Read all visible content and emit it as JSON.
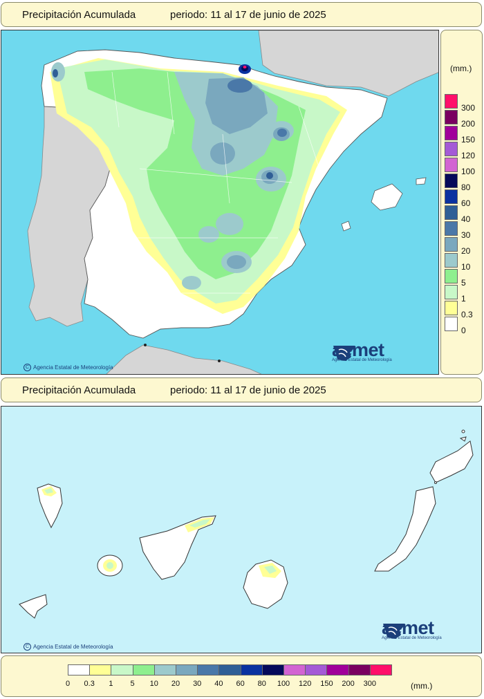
{
  "top_title": {
    "left": "Precipitación Acumulada",
    "right": "periodo: 11 al 17 de junio de 2025"
  },
  "mid_title": {
    "left": "Precipitación Acumulada",
    "right": "periodo: 11 al 17 de junio de 2025"
  },
  "credit": "Agencia Estatal de Meteorología",
  "credit_symbol": "C",
  "logo": {
    "name": "aemet",
    "subtitle": "Agencia Estatal de Meteorología",
    "icon": "aemet-logo-icon"
  },
  "legend": {
    "unit": "(mm.)",
    "side_classes": [
      {
        "label": "300",
        "color": "#ff0f6a"
      },
      {
        "label": "200",
        "color": "#7a0060"
      },
      {
        "label": "150",
        "color": "#a0009a"
      },
      {
        "label": "120",
        "color": "#a45ad6"
      },
      {
        "label": "100",
        "color": "#d264d2"
      },
      {
        "label": "80",
        "color": "#050a5a"
      },
      {
        "label": "60",
        "color": "#0a32a0"
      },
      {
        "label": "40",
        "color": "#2f5f96"
      },
      {
        "label": "30",
        "color": "#4a78a8"
      },
      {
        "label": "20",
        "color": "#7aa8be"
      },
      {
        "label": "10",
        "color": "#9ccacc"
      },
      {
        "label": "5",
        "color": "#8eef8e"
      },
      {
        "label": "1",
        "color": "#c8f8c8"
      },
      {
        "label": "0.3",
        "color": "#ffff96"
      },
      {
        "label": "0",
        "color": "#ffffff"
      }
    ],
    "bottom_swatches": [
      "#ffffff",
      "#ffff96",
      "#c8f8c8",
      "#8eef8e",
      "#9ccacc",
      "#7aa8be",
      "#4a78a8",
      "#2f5f96",
      "#0a32a0",
      "#050a5a",
      "#d264d2",
      "#a45ad6",
      "#a0009a",
      "#7a0060",
      "#ff0f6a"
    ],
    "bottom_labels": [
      "0",
      "0.3",
      "1",
      "5",
      "10",
      "20",
      "30",
      "40",
      "60",
      "80",
      "100",
      "120",
      "150",
      "200",
      "300"
    ]
  },
  "colors": {
    "sea_peninsula": "#6fd9ee",
    "sea_canarias": "#c8f2fa",
    "foreign_land": "#d6d6d6",
    "panel_bg": "#fdf8d0"
  }
}
